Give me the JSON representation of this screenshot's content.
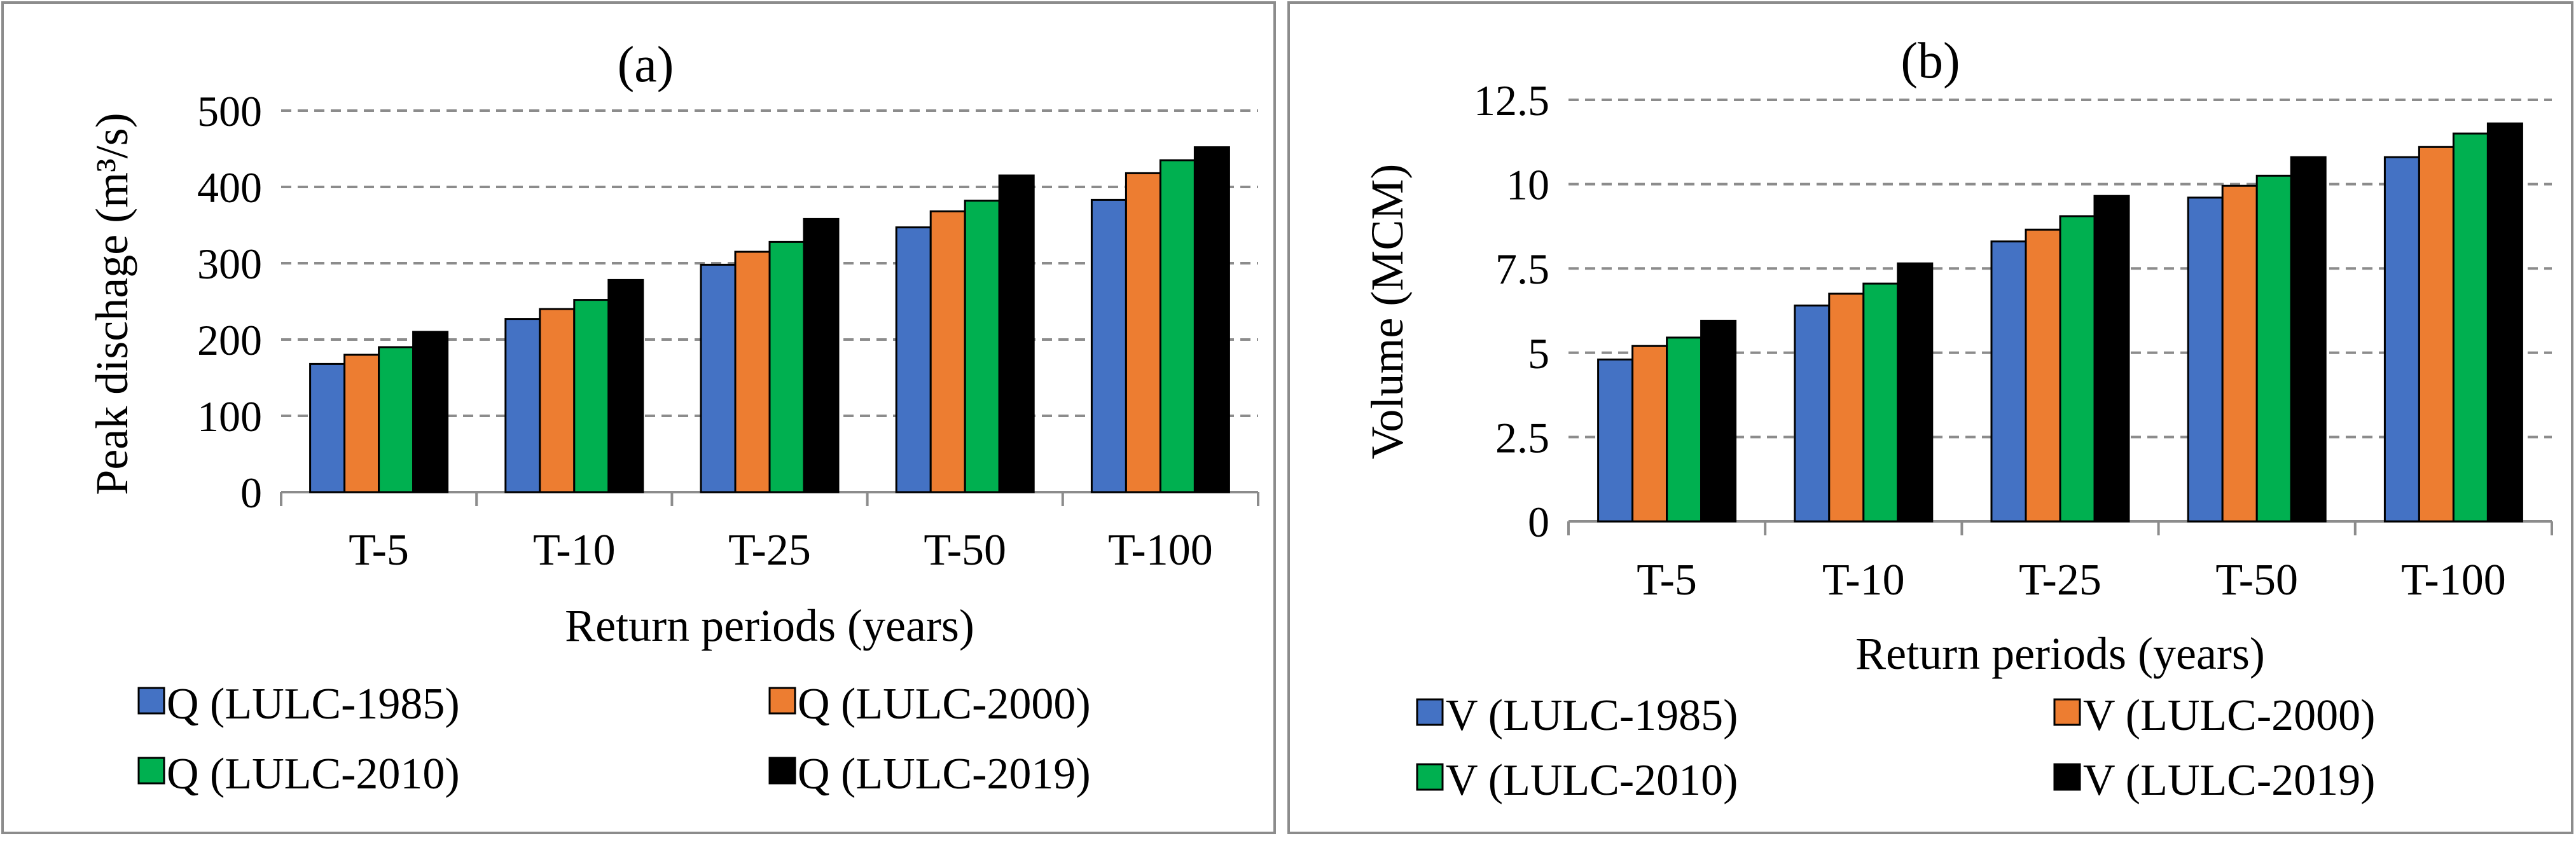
{
  "chart_data": [
    {
      "type": "bar",
      "title": "(a)",
      "xlabel": "Return periods (years)",
      "ylabel": "Peak dischage (m³/s)",
      "ylim": [
        0,
        500
      ],
      "yticks": [
        "0",
        "100",
        "200",
        "300",
        "400",
        "500"
      ],
      "categories": [
        "T-5",
        "T-10",
        "T-25",
        "T-50",
        "T-100"
      ],
      "series": [
        {
          "name": "Q (LULC-1985)",
          "color": "#4472C4",
          "values": [
            168,
            227,
            298,
            347,
            383
          ]
        },
        {
          "name": "Q (LULC-2000)",
          "color": "#ED7D31",
          "values": [
            180,
            240,
            315,
            368,
            418
          ]
        },
        {
          "name": "Q (LULC-2010)",
          "color": "#00B050",
          "values": [
            190,
            252,
            328,
            382,
            435
          ]
        },
        {
          "name": "Q (LULC-2019)",
          "color": "#000000",
          "values": [
            210,
            278,
            358,
            415,
            452
          ]
        }
      ],
      "grid": true,
      "legend": "bottom"
    },
    {
      "type": "bar",
      "title": "(b)",
      "xlabel": "Return periods (years)",
      "ylabel": "Volume (MCM)",
      "ylim": [
        0,
        12.5
      ],
      "yticks": [
        "0",
        "2.5",
        "5",
        "7.5",
        "10",
        "12.5"
      ],
      "categories": [
        "T-5",
        "T-10",
        "T-25",
        "T-50",
        "T-100"
      ],
      "series": [
        {
          "name": "V (LULC-1985)",
          "color": "#4472C4",
          "values": [
            4.8,
            6.4,
            8.3,
            9.6,
            10.8
          ]
        },
        {
          "name": "V (LULC-2000)",
          "color": "#ED7D31",
          "values": [
            5.2,
            6.75,
            8.65,
            9.95,
            11.1
          ]
        },
        {
          "name": "V (LULC-2010)",
          "color": "#00B050",
          "values": [
            5.45,
            7.05,
            9.05,
            10.25,
            11.5
          ]
        },
        {
          "name": "V (LULC-2019)",
          "color": "#000000",
          "values": [
            5.95,
            7.65,
            9.65,
            10.8,
            11.8
          ]
        }
      ],
      "grid": true,
      "legend": "bottom"
    }
  ]
}
